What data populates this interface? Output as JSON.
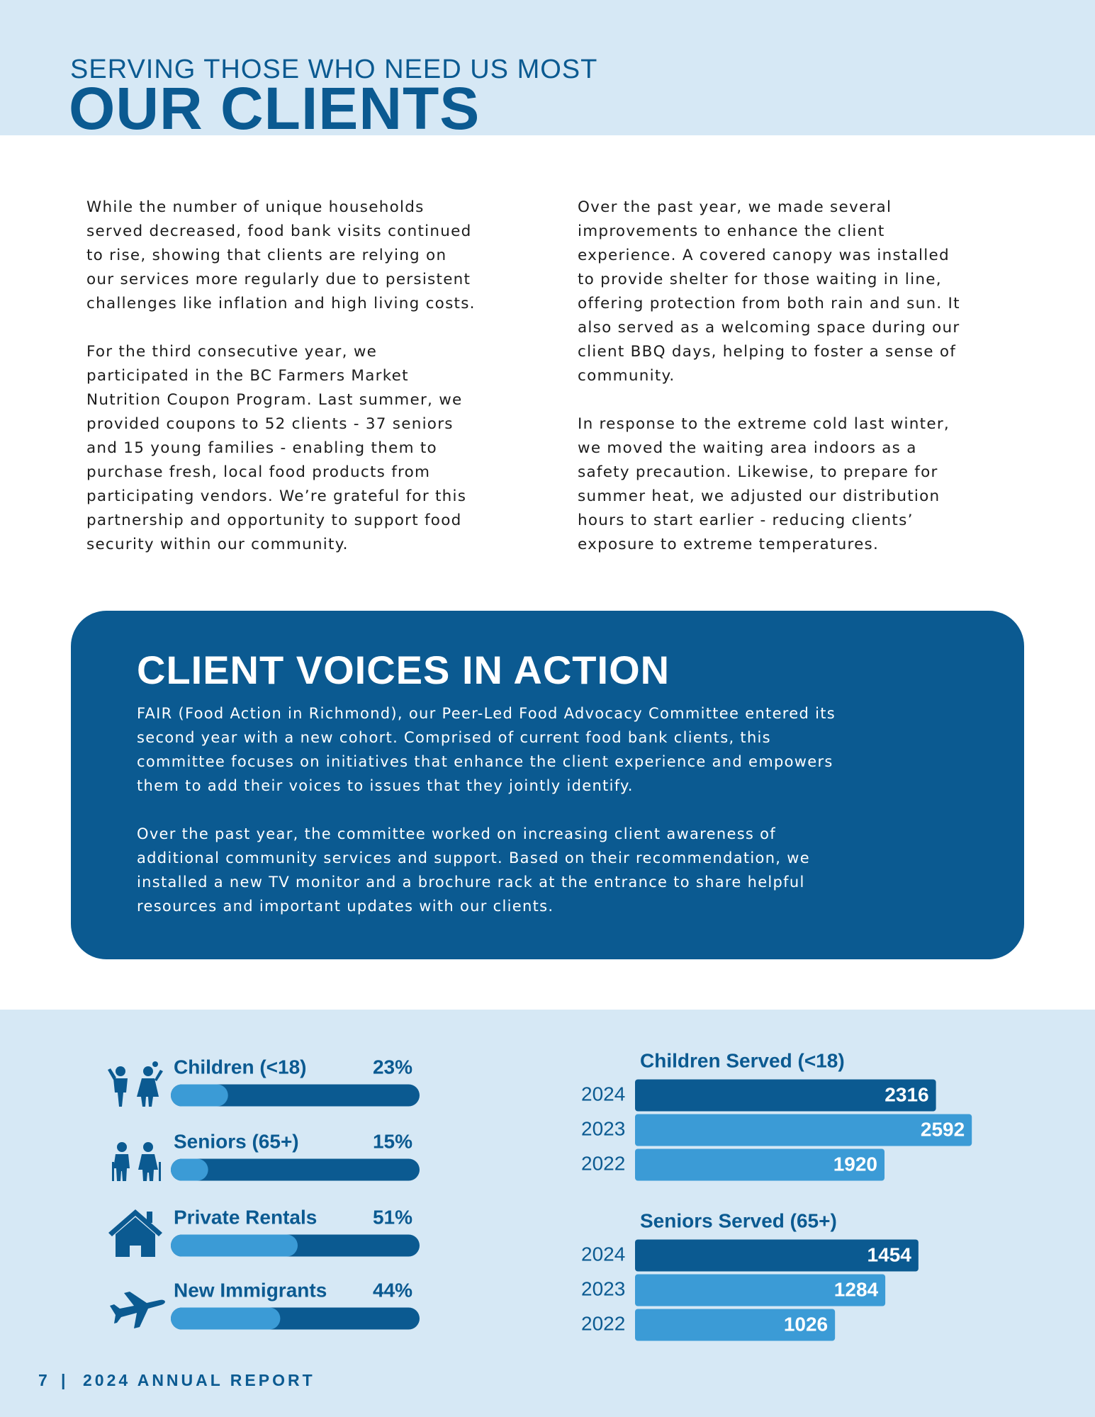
{
  "header": {
    "kicker": "SERVING THOSE WHO NEED US MOST",
    "title": "OUR CLIENTS"
  },
  "columns": [
    {
      "paragraphs": [
        {
          "lines": [
            "While the number of unique households",
            "served decreased, food bank visits continued",
            "to rise, showing that clients are relying on",
            "our services more regularly due to persistent",
            "challenges like inflation and high living costs."
          ]
        },
        {
          "lines": [
            "For the third consecutive year, we",
            "participated in the BC Farmers Market",
            "Nutrition Coupon Program. Last summer, we",
            "provided coupons to 52 clients - 37 seniors",
            "and 15 young families - enabling them to",
            "purchase fresh, local food products from",
            "participating vendors. We’re grateful for this",
            "partnership and opportunity to support food",
            "security within our community."
          ]
        }
      ]
    },
    {
      "paragraphs": [
        {
          "lines": [
            "Over the past year, we made several",
            "improvements to enhance the client",
            "experience. A covered canopy was installed",
            "to provide shelter for those waiting in line,",
            "offering protection from both rain and sun. It",
            "also served as a welcoming space during our",
            "client BBQ days, helping to foster a sense of",
            "community."
          ]
        },
        {
          "lines": [
            "In response to the extreme cold last winter,",
            "we moved the waiting area indoors as a",
            "safety precaution. Likewise, to prepare for",
            "summer heat, we adjusted our distribution",
            "hours to start earlier - reducing clients’",
            "exposure to extreme temperatures."
          ]
        }
      ]
    }
  ],
  "callout": {
    "title": "CLIENT VOICES IN ACTION",
    "paragraphs": [
      {
        "lines": [
          "FAIR (Food Action in Richmond), our Peer-Led Food Advocacy Committee entered its",
          "second year with a new cohort. Comprised of current food bank clients, this",
          "committee focuses on initiatives that enhance the client experience and empowers",
          "them to add their voices to issues that they jointly identify."
        ]
      },
      {
        "lines": [
          "Over the past year, the committee worked on increasing client awareness of",
          "additional community services and support. Based on their recommendation, we",
          "installed a new TV monitor and a brochure rack at the entrance to share helpful",
          "resources and important updates with our clients."
        ]
      }
    ]
  },
  "chart_data": [
    {
      "type": "progress",
      "categories": [
        "Children (<18)",
        "Seniors (65+)",
        "Private Rentals",
        "New Immigrants"
      ],
      "values": [
        23,
        15,
        51,
        44
      ],
      "value_labels": [
        "23%",
        "15%",
        "51%",
        "44%"
      ],
      "xlim": [
        0,
        100
      ],
      "color": "#3b9bd6",
      "track_color": "#0b5a91"
    },
    {
      "type": "bar",
      "title": "Children Served (<18)",
      "categories": [
        "2024",
        "2023",
        "2022"
      ],
      "values": [
        2316,
        2592,
        1920
      ],
      "colors": [
        "#0b5a91",
        "#3b9bd6",
        "#3b9bd6"
      ],
      "xlim": [
        0,
        2700
      ]
    },
    {
      "type": "bar",
      "title": "Seniors Served (65+)",
      "categories": [
        "2024",
        "2023",
        "2022"
      ],
      "values": [
        1454,
        1284,
        1026
      ],
      "colors": [
        "#0b5a91",
        "#3b9bd6",
        "#3b9bd6"
      ],
      "xlim": [
        0,
        1800
      ]
    }
  ],
  "footer": {
    "page": "7",
    "separator": "|",
    "title": "2024 ANNUAL REPORT"
  }
}
